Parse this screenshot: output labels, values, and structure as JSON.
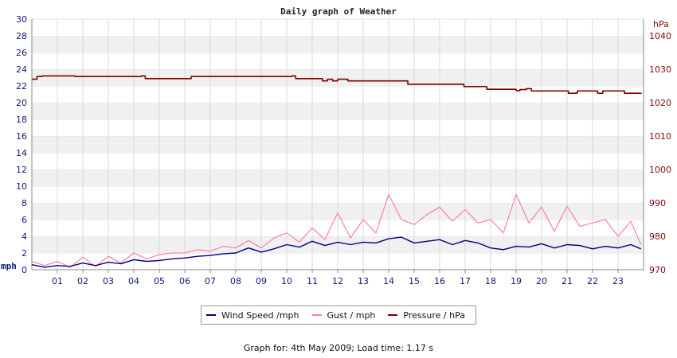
{
  "chart_data": {
    "type": "line",
    "title": "Daily graph of Weather",
    "x_tick_labels": [
      "01",
      "02",
      "03",
      "04",
      "05",
      "06",
      "07",
      "08",
      "09",
      "10",
      "11",
      "12",
      "13",
      "14",
      "15",
      "16",
      "17",
      "18",
      "19",
      "20",
      "21",
      "22",
      "23"
    ],
    "x_range_hours": [
      0,
      24
    ],
    "y_left": {
      "unit": "mph",
      "range": [
        0,
        30
      ],
      "ticks": [
        0,
        2,
        4,
        6,
        8,
        10,
        12,
        14,
        16,
        18,
        20,
        22,
        24,
        26,
        28,
        30
      ]
    },
    "y_right": {
      "unit": "hPa",
      "range": [
        970,
        1045
      ],
      "ticks": [
        970,
        980,
        990,
        1000,
        1010,
        1020,
        1030,
        1040
      ]
    },
    "grid": "horizontal bands",
    "legend_position": "bottom-center",
    "series": [
      {
        "name": "Wind Speed /mph",
        "color": "#000080",
        "axis": "left",
        "x": [
          0,
          0.5,
          1,
          1.5,
          2,
          2.5,
          3,
          3.5,
          4,
          4.5,
          5,
          5.5,
          6,
          6.5,
          7,
          7.5,
          8,
          8.5,
          9,
          9.5,
          10,
          10.5,
          11,
          11.5,
          12,
          12.5,
          13,
          13.5,
          14,
          14.5,
          15,
          15.5,
          16,
          16.5,
          17,
          17.5,
          18,
          18.5,
          19,
          19.5,
          20,
          20.5,
          21,
          21.5,
          22,
          22.5,
          23,
          23.5,
          23.9
        ],
        "values": [
          0.6,
          0.3,
          0.5,
          0.4,
          0.8,
          0.5,
          0.9,
          0.7,
          1.2,
          1.0,
          1.1,
          1.3,
          1.4,
          1.6,
          1.7,
          1.9,
          2.0,
          2.6,
          2.1,
          2.5,
          3.0,
          2.7,
          3.4,
          2.9,
          3.3,
          3.0,
          3.3,
          3.2,
          3.7,
          3.9,
          3.2,
          3.4,
          3.6,
          3.0,
          3.5,
          3.2,
          2.6,
          2.4,
          2.8,
          2.7,
          3.1,
          2.6,
          3.0,
          2.9,
          2.5,
          2.8,
          2.6,
          3.0,
          2.5
        ]
      },
      {
        "name": "Gust / mph",
        "color": "#ff7fa8",
        "axis": "left",
        "x": [
          0,
          0.5,
          1,
          1.5,
          2,
          2.5,
          3,
          3.5,
          4,
          4.5,
          5,
          5.5,
          6,
          6.5,
          7,
          7.5,
          8,
          8.5,
          9,
          9.5,
          10,
          10.5,
          11,
          11.5,
          12,
          12.5,
          13,
          13.5,
          14,
          14.5,
          15,
          15.5,
          16,
          16.5,
          17,
          17.5,
          18,
          18.5,
          19,
          19.5,
          20,
          20.5,
          21,
          21.5,
          22,
          22.5,
          23,
          23.5,
          23.9
        ],
        "values": [
          1.0,
          0.5,
          1.0,
          0.3,
          1.5,
          0.4,
          1.6,
          0.8,
          2.0,
          1.3,
          1.8,
          2.0,
          2.0,
          2.4,
          2.2,
          2.8,
          2.6,
          3.5,
          2.6,
          3.8,
          4.4,
          3.3,
          5.0,
          3.6,
          6.8,
          3.8,
          6.0,
          4.4,
          9.0,
          6.0,
          5.4,
          6.6,
          7.5,
          5.8,
          7.2,
          5.6,
          6.0,
          4.4,
          9.0,
          5.6,
          7.5,
          4.6,
          7.6,
          5.2,
          5.6,
          6.0,
          4.0,
          5.8,
          3.0
        ]
      },
      {
        "name": "Pressure / hPa",
        "color": "#800000",
        "axis": "right",
        "x": [
          0,
          0.2,
          0.4,
          1.6,
          1.7,
          4.3,
          4.45,
          6.1,
          6.25,
          10.2,
          10.35,
          11.25,
          11.4,
          11.6,
          11.8,
          12.0,
          12.4,
          14.6,
          14.75,
          16.8,
          16.95,
          17.7,
          17.85,
          18.5,
          19.0,
          19.15,
          19.4,
          19.6,
          20.9,
          21.05,
          21.2,
          21.4,
          22.0,
          22.2,
          22.4,
          23.1,
          23.25,
          23.9
        ],
        "values": [
          1027.0,
          1027.8,
          1028.0,
          1028.0,
          1027.8,
          1028.0,
          1027.2,
          1027.2,
          1027.8,
          1028.0,
          1027.2,
          1027.2,
          1026.5,
          1027.0,
          1026.5,
          1027.0,
          1026.5,
          1026.5,
          1025.5,
          1025.5,
          1024.8,
          1024.8,
          1024.0,
          1024.0,
          1023.6,
          1023.9,
          1024.2,
          1023.5,
          1023.5,
          1022.8,
          1022.8,
          1023.5,
          1023.5,
          1022.8,
          1023.5,
          1023.5,
          1022.8,
          1022.6
        ]
      }
    ]
  },
  "legend": {
    "items": [
      {
        "label": "Wind Speed /mph",
        "color": "#000080"
      },
      {
        "label": "Gust / mph",
        "color": "#ff7fa8"
      },
      {
        "label": "Pressure / hPa",
        "color": "#800000"
      }
    ]
  },
  "footer": {
    "text": "Graph for: 4th May 2009; Load time: 1.17 s"
  }
}
